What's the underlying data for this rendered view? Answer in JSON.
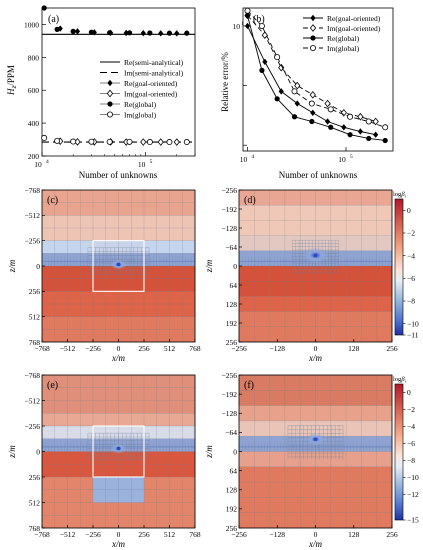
{
  "panel_a": {
    "label": "(a)",
    "ylabel_main": "H",
    "ylabel_sub": "z",
    "ylabel_rest": "/PPM",
    "xlabel": "Number of unknowns",
    "yticks": [
      "1000",
      "800",
      "600",
      "400",
      "200"
    ],
    "xtick_base": "10",
    "xtick_exps": [
      "4",
      "5"
    ]
  },
  "panel_b": {
    "label": "(b)",
    "ylabel": "Relative error/%",
    "xlabel": "Number of unknowns",
    "ytick": "10",
    "ytick_exp": "1",
    "xtick_base": "10",
    "xtick_exps": [
      "4",
      "5"
    ]
  },
  "maps": [
    {
      "label": "(c)",
      "xlabel": "x/m",
      "ylabel": "z/m",
      "xticks": [
        "−768",
        "−512",
        "−256",
        "0",
        "256",
        "512",
        "768"
      ],
      "yticks": [
        "−768",
        "−512",
        "−256",
        "0",
        "256",
        "512",
        "768"
      ]
    },
    {
      "label": "(d)",
      "xlabel": "x/m",
      "ylabel": "z/m",
      "xticks": [
        "−256",
        "−128",
        "0",
        "128",
        "256"
      ],
      "yticks": [
        "−256",
        "−192",
        "−128",
        "−64",
        "0",
        "64",
        "128",
        "192",
        "256"
      ]
    },
    {
      "label": "(e)",
      "xlabel": "x/m",
      "ylabel": "z/m",
      "xticks": [
        "−768",
        "−512",
        "−256",
        "0",
        "256",
        "512",
        "768"
      ],
      "yticks": [
        "−768",
        "−512",
        "−256",
        "0",
        "256",
        "512",
        "768"
      ]
    },
    {
      "label": "(f)",
      "xlabel": "x/m",
      "ylabel": "z/m",
      "xticks": [
        "−256",
        "−128",
        "0",
        "128",
        "256"
      ],
      "yticks": [
        "−256",
        "−192",
        "−128",
        "−64",
        "0",
        "64",
        "128",
        "192",
        "256"
      ]
    }
  ],
  "colorbars": [
    {
      "title": "log",
      "title_sub": "β",
      "title_subsub": "i",
      "ticks": [
        "0",
        "−2",
        "−4",
        "−6",
        "−8",
        "−10",
        "−11"
      ],
      "range": [
        -11,
        1
      ]
    },
    {
      "title": "log",
      "title_sub": "β",
      "title_subsub": "i",
      "ticks": [
        "0",
        "−2",
        "−4",
        "−6",
        "−8",
        "−10",
        "−12",
        "−15"
      ],
      "range": [
        -15,
        1
      ]
    }
  ],
  "chart_data": [
    {
      "type": "line",
      "panel": "(a)",
      "xscale": "log",
      "xlim": [
        10000,
        300000
      ],
      "ylim": [
        200,
        1100
      ],
      "series": [
        {
          "name": "Re(semi-analytical)",
          "style": "solid",
          "x": [
            10000,
            300000
          ],
          "y": [
            940,
            940
          ]
        },
        {
          "name": "Im(semi-analytical)",
          "style": "dashed",
          "x": [
            10000,
            300000
          ],
          "y": [
            285,
            285
          ]
        },
        {
          "name": "Re(goal-oriented)",
          "marker": "filled-diamond",
          "x": [
            15000,
            22000,
            32000,
            46000,
            65000,
            95000,
            140000,
            200000
          ],
          "y": [
            975,
            958,
            952,
            949,
            948,
            947,
            946,
            946
          ]
        },
        {
          "name": "Im(goal-oriented)",
          "marker": "open-diamond",
          "x": [
            15000,
            22000,
            32000,
            46000,
            65000,
            95000,
            140000,
            200000
          ],
          "y": [
            290,
            286,
            286,
            286,
            285,
            285,
            285,
            285
          ]
        },
        {
          "name": "Re(global)",
          "marker": "filled-circle",
          "x": [
            10500,
            14000,
            20000,
            30000,
            45000,
            70000,
            110000,
            170000,
            250000
          ],
          "y": [
            1100,
            970,
            958,
            953,
            950,
            949,
            948,
            947,
            947
          ]
        },
        {
          "name": "Im(global)",
          "marker": "open-circle",
          "x": [
            10500,
            14000,
            20000,
            30000,
            45000,
            70000,
            110000,
            170000,
            250000
          ],
          "y": [
            310,
            292,
            288,
            287,
            286,
            286,
            285,
            285,
            285
          ]
        }
      ]
    },
    {
      "type": "line",
      "panel": "(b)",
      "xscale": "log",
      "xlim": [
        9000,
        300000
      ],
      "yscale": "log",
      "ylim": [
        0.08,
        20
      ],
      "series": [
        {
          "name": "Re(goal-oriented)",
          "marker": "filled-diamond",
          "style": "solid",
          "x": [
            10000,
            15000,
            22000,
            32000,
            46000,
            65000,
            95000,
            140000,
            200000
          ],
          "y": [
            10,
            2.5,
            0.8,
            0.5,
            0.35,
            0.25,
            0.2,
            0.17,
            0.15
          ]
        },
        {
          "name": "Im(goal-oriented)",
          "marker": "open-diamond",
          "style": "dashed",
          "x": [
            10000,
            15000,
            22000,
            32000,
            46000,
            65000,
            95000,
            140000,
            200000
          ],
          "y": [
            15,
            7,
            2,
            1,
            0.7,
            0.5,
            0.35,
            0.3,
            0.25
          ]
        },
        {
          "name": "Re(global)",
          "marker": "filled-circle",
          "style": "solid",
          "x": [
            10000,
            14000,
            20000,
            30000,
            45000,
            70000,
            110000,
            170000,
            250000
          ],
          "y": [
            15,
            1.8,
            0.6,
            0.3,
            0.25,
            0.2,
            0.15,
            0.13,
            0.12
          ]
        },
        {
          "name": "Im(global)",
          "marker": "open-circle",
          "style": "dashed",
          "x": [
            10000,
            14000,
            20000,
            30000,
            45000,
            70000,
            110000,
            170000,
            250000
          ],
          "y": [
            18,
            10,
            3,
            0.8,
            0.5,
            0.4,
            0.3,
            0.25,
            0.2
          ]
        }
      ]
    }
  ],
  "colors": {
    "surface": "#f1d2c6",
    "deep": "#d9503b",
    "mid": "#e58a6e",
    "air": "#c5d5ec",
    "minimum": "#2a47c6",
    "mesh": "#6f7e95",
    "box": "#ffffff"
  }
}
